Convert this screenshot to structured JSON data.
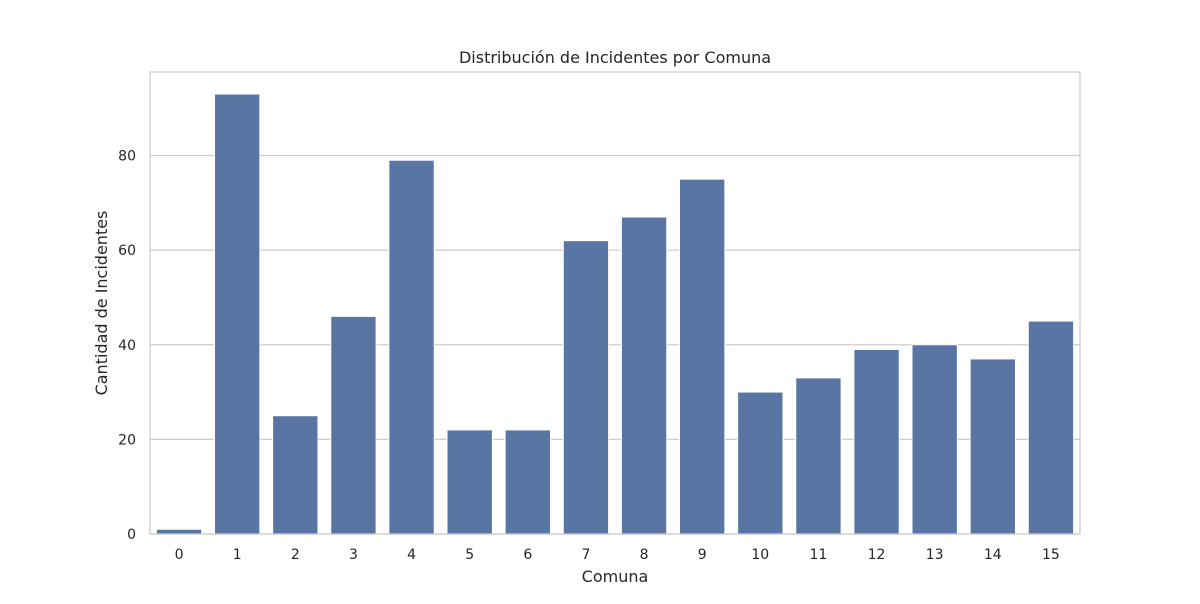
{
  "chart_data": {
    "type": "bar",
    "title": "Distribución de Incidentes por Comuna",
    "xlabel": "Comuna",
    "ylabel": "Cantidad de Incidentes",
    "categories": [
      "0",
      "1",
      "2",
      "3",
      "4",
      "5",
      "6",
      "7",
      "8",
      "9",
      "10",
      "11",
      "12",
      "13",
      "14",
      "15"
    ],
    "values": [
      1,
      93,
      25,
      46,
      79,
      22,
      22,
      62,
      67,
      75,
      30,
      33,
      39,
      40,
      37,
      45
    ],
    "ylim": [
      0,
      97.65
    ],
    "yticks": [
      0,
      20,
      40,
      60,
      80
    ],
    "grid": "horizontal",
    "bar_color": "#5975a4",
    "grid_color": "#cccccc",
    "spine_color": "#cccccc"
  }
}
